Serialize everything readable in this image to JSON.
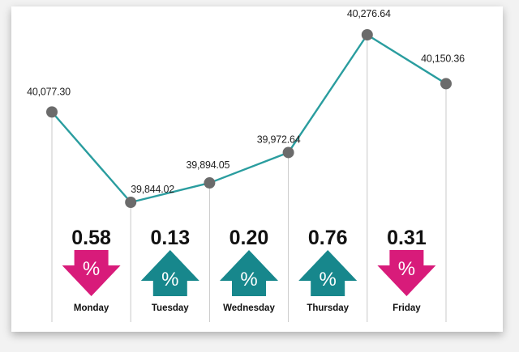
{
  "chart_data": {
    "type": "line",
    "categories": [
      "Monday",
      "Tuesday",
      "Wednesday",
      "Thursday",
      "Friday"
    ],
    "x": [
      0,
      1,
      2,
      3,
      4,
      5
    ],
    "values": [
      40077.3,
      39844.02,
      39894.05,
      39972.64,
      40276.64,
      40150.36
    ],
    "value_labels": [
      "40,077.30",
      "39,844.02",
      "39,894.05",
      "39,972.64",
      "40,276.64",
      "40,150.36"
    ],
    "changes": [
      {
        "day": "Monday",
        "value": "0.58",
        "direction": "down"
      },
      {
        "day": "Tuesday",
        "value": "0.13",
        "direction": "up"
      },
      {
        "day": "Wednesday",
        "value": "0.20",
        "direction": "up"
      },
      {
        "day": "Thursday",
        "value": "0.76",
        "direction": "up"
      },
      {
        "day": "Friday",
        "value": "0.31",
        "direction": "down"
      }
    ],
    "percent_symbol": "%",
    "ylim": [
      39844.02,
      40276.64
    ],
    "colors": {
      "line": "#2a9d9f",
      "marker": "#6b6b6b",
      "down": "#d81b7a",
      "up": "#17878c",
      "grid": "#c9c9c9"
    },
    "grid": false,
    "legend": "none"
  }
}
